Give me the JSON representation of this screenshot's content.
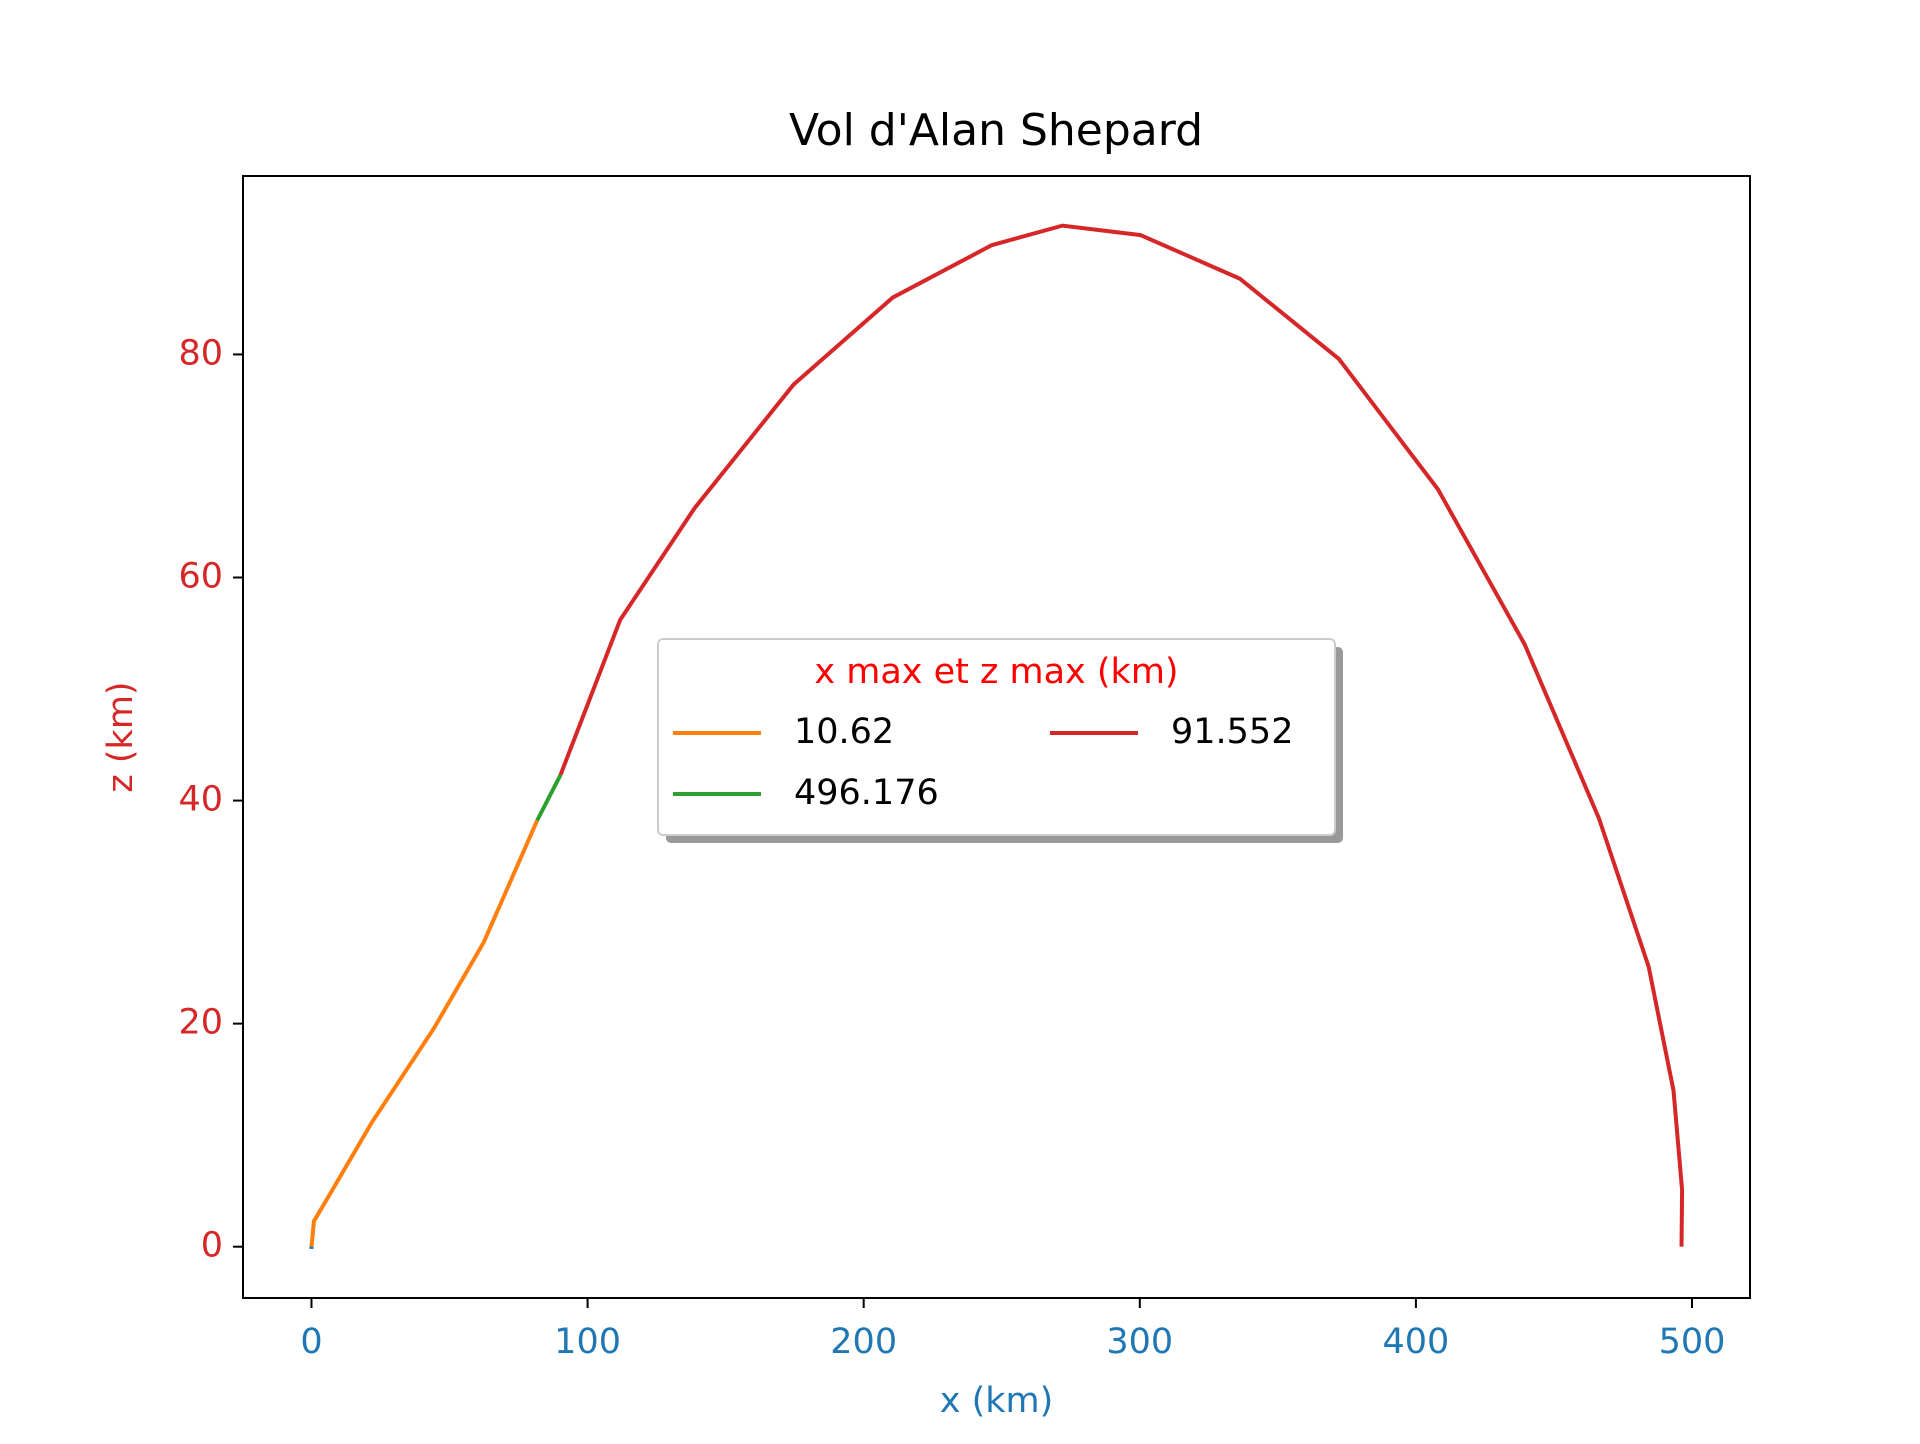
{
  "chart_data": {
    "type": "line",
    "title": "Vol d'Alan Shepard",
    "xlabel": "x (km)",
    "ylabel": "z (km)",
    "xlim": [
      -24.8,
      521
    ],
    "ylim": [
      -4.6,
      96
    ],
    "xticks": [
      0,
      100,
      200,
      300,
      400,
      500
    ],
    "yticks": [
      0,
      20,
      40,
      60,
      80
    ],
    "x_axis_color": "#1f77b4",
    "y_axis_color": "#d62728",
    "legend_title": "x max et z max (km)",
    "legend_title_color": "#ff0000",
    "legend_position": "center",
    "series": [
      {
        "color": "#1f77b4",
        "x": [
          0,
          0
        ],
        "values": [
          0.2,
          -0.2
        ]
      },
      {
        "name": "10.62",
        "color": "#ff7f0e",
        "x": [
          0,
          0.9,
          5,
          22,
          44.4,
          62.4,
          81.7
        ],
        "values": [
          0,
          2.3,
          4,
          11.2,
          19.6,
          27.3,
          38.2
        ]
      },
      {
        "name": "496.176",
        "color": "#2ca02c",
        "x": [
          81.7,
          90.2
        ],
        "values": [
          38.2,
          42.3
        ]
      },
      {
        "name": "91.552",
        "color": "#d62728",
        "x": [
          90.2,
          111.8,
          138.7,
          174.6,
          210.5,
          246.4,
          272,
          300.3,
          336.2,
          372.1,
          408,
          439.4,
          466.3,
          484.3,
          493.3,
          496.4,
          496.2
        ],
        "values": [
          42.3,
          56.2,
          66.2,
          77.3,
          85.1,
          89.8,
          91.55,
          90.7,
          86.8,
          79.6,
          67.9,
          54,
          38.4,
          25.1,
          14,
          5.1,
          0
        ]
      }
    ]
  }
}
